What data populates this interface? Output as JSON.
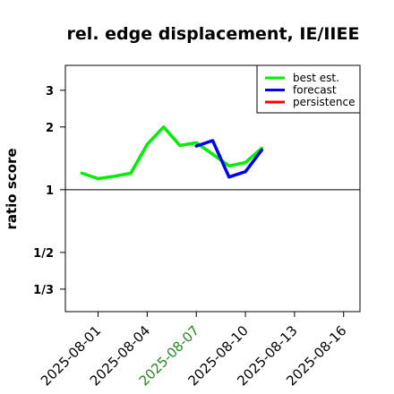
{
  "chart_data": {
    "type": "line",
    "title": "rel. edge displacement, IE/IIEE",
    "ylabel": "ratio score",
    "xlabel": "",
    "y_scale": "log",
    "y_ticks": [
      {
        "value": 3,
        "label": "3"
      },
      {
        "value": 2,
        "label": "2"
      },
      {
        "value": 1,
        "label": "1"
      },
      {
        "value": 0.5,
        "label": "1/2"
      },
      {
        "value": 0.3333,
        "label": "1/3"
      }
    ],
    "ylim": [
      0.26,
      3.95
    ],
    "xlim": [
      "2025-07-30",
      "2025-08-17"
    ],
    "x_ticks": [
      {
        "date": "2025-08-01",
        "label": "2025-08-01",
        "color": "#000000"
      },
      {
        "date": "2025-08-04",
        "label": "2025-08-04",
        "color": "#000000"
      },
      {
        "date": "2025-08-07",
        "label": "2025-08-07",
        "color": "#228B22"
      },
      {
        "date": "2025-08-10",
        "label": "2025-08-10",
        "color": "#000000"
      },
      {
        "date": "2025-08-13",
        "label": "2025-08-13",
        "color": "#000000"
      },
      {
        "date": "2025-08-16",
        "label": "2025-08-16",
        "color": "#000000"
      }
    ],
    "reference_line": 1,
    "grid": false,
    "legend_position": "top-right",
    "series": [
      {
        "name": "best est.",
        "color": "#00ee00",
        "points": [
          {
            "x": "2025-07-31",
            "y": 1.2
          },
          {
            "x": "2025-08-01",
            "y": 1.13
          },
          {
            "x": "2025-08-02",
            "y": 1.16
          },
          {
            "x": "2025-08-03",
            "y": 1.2
          },
          {
            "x": "2025-08-04",
            "y": 1.65
          },
          {
            "x": "2025-08-05",
            "y": 2.0
          },
          {
            "x": "2025-08-06",
            "y": 1.63
          },
          {
            "x": "2025-08-07",
            "y": 1.68
          },
          {
            "x": "2025-08-08",
            "y": 1.48
          },
          {
            "x": "2025-08-09",
            "y": 1.3
          },
          {
            "x": "2025-08-10",
            "y": 1.35
          },
          {
            "x": "2025-08-11",
            "y": 1.58
          }
        ]
      },
      {
        "name": "forecast",
        "color": "#0000ee",
        "points": [
          {
            "x": "2025-08-07",
            "y": 1.62
          },
          {
            "x": "2025-08-08",
            "y": 1.72
          },
          {
            "x": "2025-08-09",
            "y": 1.15
          },
          {
            "x": "2025-08-10",
            "y": 1.22
          },
          {
            "x": "2025-08-11",
            "y": 1.55
          }
        ]
      },
      {
        "name": "persistence",
        "color": "#ff0000",
        "points": []
      }
    ]
  }
}
